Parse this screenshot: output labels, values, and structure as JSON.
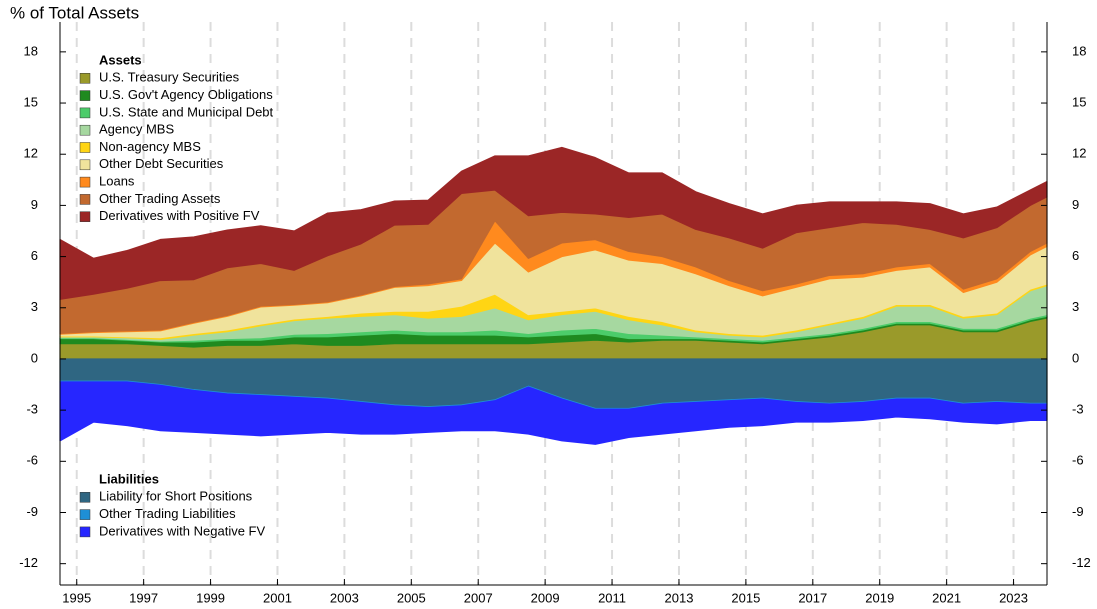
{
  "chart_data": {
    "type": "area",
    "title": "% of Total Assets",
    "x": [
      1994.5,
      1995.5,
      1996.5,
      1997.5,
      1998.5,
      1999.5,
      2000.5,
      2001.5,
      2002.5,
      2003.5,
      2004.5,
      2005.5,
      2006.5,
      2007.5,
      2008.5,
      2009.5,
      2010.5,
      2011.5,
      2012.5,
      2013.5,
      2014.5,
      2015.5,
      2016.5,
      2017.5,
      2018.5,
      2019.5,
      2020.5,
      2021.5,
      2022.5,
      2023.5,
      2024.0
    ],
    "xlim": [
      1994.5,
      2024.0
    ],
    "xticks": [
      1995,
      1997,
      1999,
      2001,
      2003,
      2005,
      2007,
      2009,
      2011,
      2013,
      2015,
      2017,
      2019,
      2021,
      2023
    ],
    "x_grid": true,
    "ylim": [
      -13.25,
      19.75
    ],
    "yticks": [
      -12,
      -9,
      -6,
      -3,
      0,
      3,
      6,
      9,
      12,
      15,
      18
    ],
    "stacked": true,
    "asset_legend_title": "Assets",
    "liability_legend_title": "Liabilities",
    "series": [
      {
        "name": "U.S. Treasury Securities",
        "color": "#9a9a2a",
        "values": [
          0.9,
          0.9,
          0.9,
          0.8,
          0.7,
          0.8,
          0.8,
          0.9,
          0.8,
          0.8,
          0.9,
          0.9,
          0.9,
          0.9,
          0.9,
          1.0,
          1.1,
          1.0,
          1.1,
          1.1,
          1.0,
          0.9,
          1.1,
          1.3,
          1.6,
          2.0,
          2.0,
          1.6,
          1.6,
          2.2,
          2.4
        ]
      },
      {
        "name": "U.S. Gov't Agency Obligations",
        "color": "#1f8a1f",
        "values": [
          0.3,
          0.3,
          0.2,
          0.2,
          0.3,
          0.3,
          0.3,
          0.4,
          0.5,
          0.6,
          0.6,
          0.5,
          0.5,
          0.5,
          0.4,
          0.4,
          0.4,
          0.2,
          0.1,
          0.1,
          0.1,
          0.1,
          0.1,
          0.1,
          0.1,
          0.1,
          0.1,
          0.1,
          0.1,
          0.1,
          0.1
        ]
      },
      {
        "name": "U.S. State and Municipal Debt",
        "color": "#4ccc6a",
        "values": [
          0.05,
          0.05,
          0.05,
          0.05,
          0.1,
          0.1,
          0.15,
          0.15,
          0.2,
          0.2,
          0.2,
          0.2,
          0.2,
          0.3,
          0.2,
          0.3,
          0.3,
          0.3,
          0.2,
          0.1,
          0.1,
          0.1,
          0.1,
          0.1,
          0.1,
          0.1,
          0.1,
          0.1,
          0.1,
          0.1,
          0.1
        ]
      },
      {
        "name": "Agency MBS",
        "color": "#a6d8a0",
        "values": [
          0.05,
          0.05,
          0.1,
          0.1,
          0.3,
          0.4,
          0.7,
          0.8,
          0.9,
          0.9,
          0.9,
          0.8,
          0.9,
          1.3,
          0.8,
          0.9,
          1.0,
          0.8,
          0.6,
          0.3,
          0.2,
          0.2,
          0.3,
          0.5,
          0.6,
          0.9,
          0.9,
          0.6,
          0.8,
          1.6,
          1.7
        ]
      },
      {
        "name": "Non-agency MBS",
        "color": "#ffd514",
        "values": [
          0.05,
          0.05,
          0.05,
          0.1,
          0.1,
          0.1,
          0.1,
          0.1,
          0.1,
          0.2,
          0.2,
          0.4,
          0.6,
          0.8,
          0.3,
          0.2,
          0.2,
          0.2,
          0.2,
          0.1,
          0.1,
          0.1,
          0.1,
          0.1,
          0.1,
          0.1,
          0.1,
          0.1,
          0.1,
          0.1,
          0.1
        ]
      },
      {
        "name": "Other Debt Securities",
        "color": "#f0e39c",
        "values": [
          0.1,
          0.2,
          0.3,
          0.4,
          0.6,
          0.8,
          1.0,
          0.8,
          0.8,
          1.0,
          1.4,
          1.5,
          1.5,
          3.0,
          2.5,
          3.2,
          3.4,
          3.3,
          3.4,
          3.3,
          2.8,
          2.3,
          2.5,
          2.6,
          2.3,
          2.0,
          2.2,
          1.4,
          1.8,
          2.0,
          2.2
        ]
      },
      {
        "name": "Loans",
        "color": "#ff8a1e",
        "values": [
          0.05,
          0.05,
          0.05,
          0.05,
          0.05,
          0.05,
          0.05,
          0.05,
          0.05,
          0.05,
          0.05,
          0.1,
          0.1,
          1.3,
          0.8,
          0.8,
          0.6,
          0.5,
          0.4,
          0.4,
          0.3,
          0.3,
          0.2,
          0.2,
          0.2,
          0.2,
          0.2,
          0.2,
          0.2,
          0.2,
          0.2
        ]
      },
      {
        "name": "Other Trading Assets",
        "color": "#c2692f",
        "values": [
          2.0,
          2.2,
          2.5,
          2.9,
          2.5,
          2.8,
          2.5,
          2.0,
          2.7,
          3.0,
          3.6,
          3.5,
          5.0,
          1.8,
          2.5,
          1.8,
          1.5,
          2.0,
          2.5,
          2.2,
          2.5,
          2.5,
          3.0,
          2.8,
          3.0,
          2.5,
          2.0,
          3.0,
          3.0,
          2.7,
          2.7
        ]
      },
      {
        "name": "Derivatives with Positive FV",
        "color": "#9b2626",
        "values": [
          3.5,
          2.1,
          2.2,
          2.4,
          2.5,
          2.2,
          2.2,
          2.3,
          2.5,
          2.0,
          1.4,
          1.4,
          1.3,
          2.0,
          3.5,
          3.8,
          3.3,
          2.6,
          2.4,
          2.2,
          2.0,
          2.0,
          1.6,
          1.5,
          1.2,
          1.3,
          1.5,
          1.4,
          1.2,
          0.9,
          0.9
        ]
      }
    ],
    "liability_series": [
      {
        "name": "Liability for Short Positions",
        "color": "#2f6682",
        "values": [
          -1.3,
          -1.3,
          -1.3,
          -1.5,
          -1.8,
          -2.0,
          -2.1,
          -2.2,
          -2.3,
          -2.5,
          -2.7,
          -2.8,
          -2.7,
          -2.4,
          -1.6,
          -2.3,
          -2.9,
          -2.9,
          -2.6,
          -2.5,
          -2.4,
          -2.3,
          -2.5,
          -2.6,
          -2.5,
          -2.3,
          -2.3,
          -2.6,
          -2.5,
          -2.6,
          -2.6
        ]
      },
      {
        "name": "Other Trading Liabilities",
        "color": "#1e8fd6",
        "values": [
          -0.05,
          -0.05,
          -0.05,
          -0.05,
          -0.05,
          -0.05,
          -0.05,
          -0.05,
          -0.05,
          -0.05,
          -0.05,
          -0.05,
          -0.05,
          -0.05,
          -0.05,
          -0.05,
          -0.05,
          -0.05,
          -0.05,
          -0.05,
          -0.05,
          -0.05,
          -0.05,
          -0.05,
          -0.05,
          -0.05,
          -0.05,
          -0.05,
          -0.05,
          -0.05,
          -0.05
        ]
      },
      {
        "name": "Derivatives with Negative FV",
        "color": "#2626ff",
        "values": [
          -3.45,
          -2.35,
          -2.55,
          -2.65,
          -2.45,
          -2.35,
          -2.35,
          -2.15,
          -1.95,
          -1.85,
          -1.65,
          -1.45,
          -1.45,
          -1.75,
          -2.75,
          -2.45,
          -2.05,
          -1.65,
          -1.75,
          -1.65,
          -1.55,
          -1.55,
          -1.15,
          -1.05,
          -1.05,
          -1.05,
          -1.15,
          -1.05,
          -1.25,
          -0.95,
          -0.95
        ]
      }
    ]
  }
}
